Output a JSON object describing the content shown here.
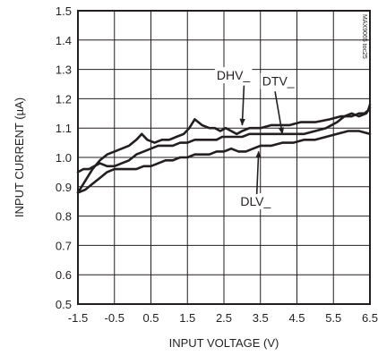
{
  "colors": {
    "ink": "#231f20",
    "grid": "#231f20",
    "background": "#ffffff"
  },
  "chart_data": {
    "type": "line",
    "title": "",
    "xlabel": "INPUT VOLTAGE (V)",
    "ylabel": "INPUT CURRENT (µA)",
    "xlim": [
      -1.5,
      6.5
    ],
    "ylim": [
      0.5,
      1.5
    ],
    "x_ticks": [
      -1.5,
      -0.5,
      0.5,
      1.5,
      2.5,
      3.5,
      4.5,
      5.5,
      6.5
    ],
    "x_tick_labels": [
      "-1.5",
      "-0.5",
      "0.5",
      "1.5",
      "2.5",
      "3.5",
      "4.5",
      "5.5",
      "6.5"
    ],
    "y_ticks": [
      0.5,
      0.6,
      0.7,
      0.8,
      0.9,
      1.0,
      1.1,
      1.2,
      1.3,
      1.4,
      1.5
    ],
    "y_tick_labels": [
      "0.5",
      "0.6",
      "0.7",
      "0.8",
      "0.9",
      "1.0",
      "1.1",
      "1.2",
      "1.3",
      "1.4",
      "1.5"
    ],
    "grid": true,
    "watermark": "MAX9065 toc25",
    "annotations": [
      {
        "text": "DHV_",
        "series": "DHV_"
      },
      {
        "text": "DTV_",
        "series": "DTV_"
      },
      {
        "text": "DLV_",
        "series": "DLV_"
      }
    ],
    "series": [
      {
        "name": "DHV_",
        "x": [
          -1.5,
          -1.3,
          -1.1,
          -0.9,
          -0.7,
          -0.5,
          -0.3,
          -0.1,
          0.1,
          0.25,
          0.4,
          0.6,
          0.8,
          1.0,
          1.2,
          1.4,
          1.55,
          1.7,
          1.9,
          2.1,
          2.25,
          2.4,
          2.55,
          2.7,
          2.85,
          3.0,
          3.2,
          3.5,
          3.8,
          4.0,
          4.3,
          4.6,
          5.0,
          5.4,
          5.7,
          6.0,
          6.2,
          6.35,
          6.45,
          6.5
        ],
        "y": [
          0.88,
          0.92,
          0.96,
          0.99,
          1.01,
          1.02,
          1.03,
          1.04,
          1.06,
          1.08,
          1.06,
          1.05,
          1.06,
          1.06,
          1.07,
          1.08,
          1.1,
          1.13,
          1.11,
          1.1,
          1.1,
          1.09,
          1.1,
          1.09,
          1.08,
          1.09,
          1.1,
          1.1,
          1.11,
          1.11,
          1.11,
          1.12,
          1.12,
          1.13,
          1.14,
          1.14,
          1.15,
          1.15,
          1.16,
          1.18
        ]
      },
      {
        "name": "DTV_",
        "x": [
          -1.5,
          -1.35,
          -1.2,
          -1.05,
          -0.9,
          -0.7,
          -0.5,
          -0.3,
          -0.1,
          0.1,
          0.3,
          0.5,
          0.7,
          0.9,
          1.1,
          1.3,
          1.5,
          1.7,
          1.9,
          2.1,
          2.3,
          2.45,
          2.6,
          2.8,
          3.0,
          3.2,
          3.5,
          3.8,
          4.1,
          4.4,
          4.7,
          5.0,
          5.3,
          5.6,
          5.8,
          6.0,
          6.2,
          6.4,
          6.5
        ],
        "y": [
          0.95,
          0.96,
          0.96,
          0.97,
          0.98,
          0.97,
          0.97,
          0.98,
          0.99,
          1.01,
          1.02,
          1.03,
          1.04,
          1.04,
          1.04,
          1.05,
          1.05,
          1.06,
          1.06,
          1.06,
          1.06,
          1.07,
          1.07,
          1.07,
          1.07,
          1.08,
          1.08,
          1.08,
          1.08,
          1.08,
          1.08,
          1.09,
          1.1,
          1.12,
          1.14,
          1.15,
          1.14,
          1.15,
          1.17
        ]
      },
      {
        "name": "DLV_",
        "x": [
          -1.5,
          -1.3,
          -1.1,
          -0.9,
          -0.7,
          -0.5,
          -0.3,
          -0.1,
          0.1,
          0.3,
          0.5,
          0.7,
          0.9,
          1.1,
          1.3,
          1.5,
          1.7,
          1.9,
          2.1,
          2.3,
          2.5,
          2.7,
          2.9,
          3.1,
          3.3,
          3.5,
          3.8,
          4.1,
          4.4,
          4.7,
          5.0,
          5.3,
          5.6,
          5.9,
          6.2,
          6.5
        ],
        "y": [
          0.88,
          0.89,
          0.91,
          0.93,
          0.95,
          0.96,
          0.96,
          0.96,
          0.96,
          0.97,
          0.97,
          0.98,
          0.99,
          0.99,
          1.0,
          1.0,
          1.01,
          1.01,
          1.01,
          1.02,
          1.02,
          1.03,
          1.02,
          1.02,
          1.03,
          1.04,
          1.04,
          1.05,
          1.05,
          1.06,
          1.06,
          1.07,
          1.08,
          1.09,
          1.09,
          1.08
        ]
      }
    ]
  }
}
